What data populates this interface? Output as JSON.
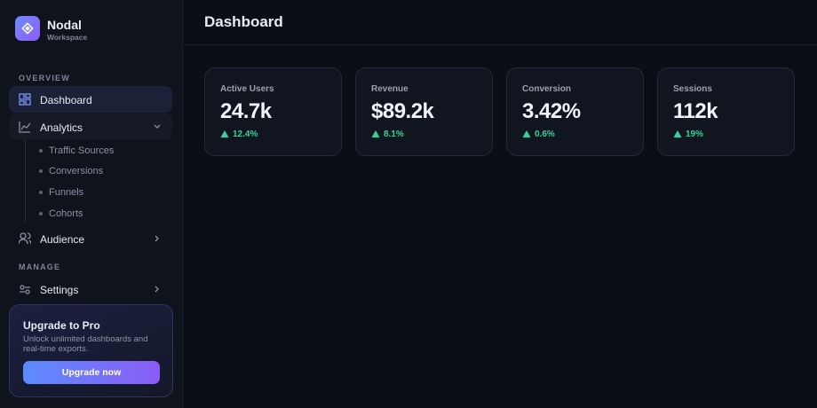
{
  "sidebar": {
    "brand": {
      "name": "Nodal",
      "subtitle": "Workspace"
    },
    "sections": [
      {
        "label": "OVERVIEW",
        "items": [
          {
            "label": "Dashboard"
          },
          {
            "label": "Analytics",
            "children": [
              "Traffic Sources",
              "Conversions",
              "Funnels",
              "Cohorts"
            ]
          },
          {
            "label": "Audience"
          }
        ]
      },
      {
        "label": "MANAGE",
        "items": [
          {
            "label": "Settings"
          }
        ]
      }
    ],
    "promo": {
      "title": "Upgrade to Pro",
      "text": "Unlock unlimited dashboards and real-time exports.",
      "button": "Upgrade now"
    }
  },
  "header": {
    "title": "Dashboard"
  },
  "cards": [
    {
      "label": "Active Users",
      "value": "24.7k",
      "change": "12.4%"
    },
    {
      "label": "Revenue",
      "value": "$89.2k",
      "change": "8.1%"
    },
    {
      "label": "Conversion",
      "value": "3.42%",
      "change": "0.6%"
    },
    {
      "label": "Sessions",
      "value": "112k",
      "change": "19%"
    }
  ]
}
